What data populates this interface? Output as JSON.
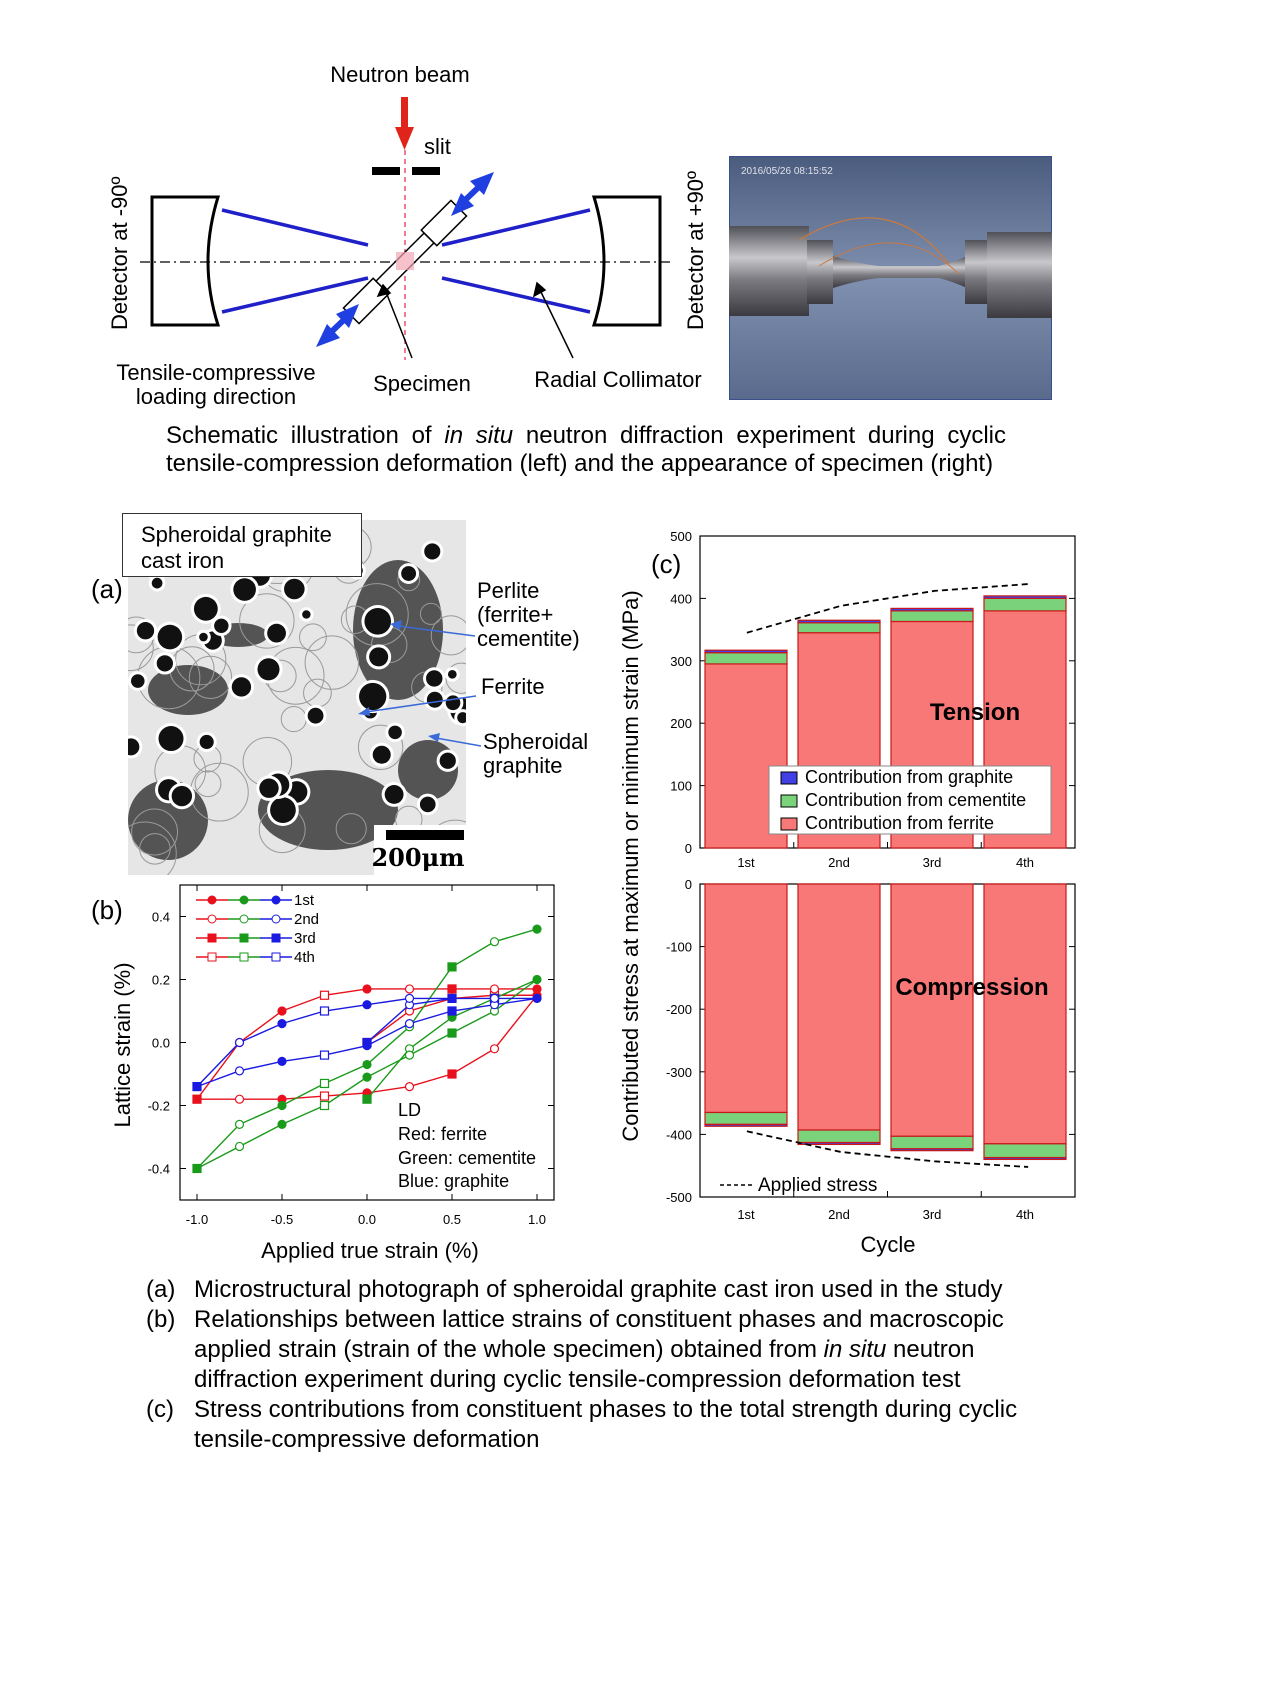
{
  "schematic": {
    "neutron_beam": "Neutron beam",
    "slit": "slit",
    "detector_left": "Detector at -90º",
    "detector_right": "Detector at +90º",
    "loading_direction_1": "Tensile-compressive",
    "loading_direction_2": "loading direction",
    "specimen": "Specimen",
    "collimator": "Radial Collimator",
    "photo_timestamp": "2016/05/26  08:15:52"
  },
  "caption_top": {
    "line1_a": "Schematic illustration of ",
    "line1_italic": "in situ",
    "line1_b": " neutron diffraction experiment during cyclic",
    "line2": "tensile-compression deformation (left) and the appearance of specimen (right)"
  },
  "panel_a": {
    "label": "(a)",
    "box_line1": "Spheroidal graphite",
    "box_line2": "cast iron",
    "perlite_1": "Perlite",
    "perlite_2": "(ferrite+",
    "perlite_3": "cementite)",
    "ferrite": "Ferrite",
    "graphite_1": "Spheroidal",
    "graphite_2": "graphite",
    "scale": "200μm"
  },
  "panel_b": {
    "label": "(b)",
    "legend": [
      "1st",
      "2nd",
      "3rd",
      "4th"
    ],
    "ld_title": "LD",
    "ld_red": "Red: ferrite",
    "ld_green": "Green: cementite",
    "ld_blue": "Blue: graphite"
  },
  "panel_c": {
    "label": "(c)"
  },
  "caption_bottom": {
    "a_label": "(a)",
    "a_text": "Microstructural photograph of spheroidal graphite cast iron used in the study",
    "b_label": "(b)",
    "b_line1": "Relationships between lattice strains of constituent phases and macroscopic",
    "b_line2_a": "applied strain (strain of the whole specimen) obtained from ",
    "b_line2_italic": "in situ",
    "b_line2_b": " neutron",
    "b_line3": "diffraction experiment during cyclic tensile-compression deformation test",
    "c_label": "(c)",
    "c_line1": "Stress contributions from constituent phases to the total strength during cyclic",
    "c_line2": "tensile-compressive deformation"
  },
  "chart_data": [
    {
      "type": "scatter",
      "xlabel": "Applied true strain (%)",
      "ylabel": "Lattice strain (%)",
      "xlim": [
        -1.1,
        1.1
      ],
      "ylim": [
        -0.5,
        0.5
      ],
      "xticks": [
        -1.0,
        -0.5,
        0.0,
        0.5,
        1.0
      ],
      "xtick_labels": [
        "-1.0",
        "-0.5",
        "0.0",
        "0.5",
        "1.0"
      ],
      "yticks": [
        -0.4,
        -0.2,
        0.0,
        0.2,
        0.4
      ],
      "ytick_labels": [
        "-0.4",
        "-0.2",
        "0.0",
        "0.2",
        "0.4"
      ],
      "colors": {
        "ferrite": "#e8101c",
        "cementite": "#1a9a1a",
        "graphite": "#1a1ae0"
      },
      "series": [
        {
          "name": "Red: ferrite",
          "color": "#e8101c",
          "x": [
            0.0,
            0.25,
            0.5,
            0.75,
            1.0,
            0.75,
            0.5,
            0.25,
            0.0,
            -0.25,
            -0.5,
            -0.75,
            -1.0,
            -0.75,
            -0.5,
            -0.25,
            0.0,
            0.25,
            0.5,
            0.75,
            1.0
          ],
          "y": [
            0.0,
            0.1,
            0.14,
            0.15,
            0.15,
            -0.02,
            -0.1,
            -0.14,
            -0.16,
            -0.17,
            -0.18,
            -0.18,
            -0.18,
            0.0,
            0.1,
            0.15,
            0.17,
            0.17,
            0.17,
            0.17,
            0.17
          ]
        },
        {
          "name": "Green: cementite",
          "color": "#1a9a1a",
          "x": [
            0.0,
            0.25,
            0.5,
            0.75,
            1.0,
            0.75,
            0.5,
            0.25,
            0.0,
            -0.25,
            -0.5,
            -0.75,
            -1.0,
            -0.75,
            -0.5,
            -0.25,
            0.0,
            0.25,
            0.5,
            0.75,
            1.0
          ],
          "y": [
            -0.18,
            -0.02,
            0.08,
            0.14,
            0.2,
            0.1,
            0.03,
            -0.04,
            -0.11,
            -0.2,
            -0.26,
            -0.33,
            -0.4,
            -0.26,
            -0.2,
            -0.13,
            -0.07,
            0.05,
            0.24,
            0.32,
            0.36
          ]
        },
        {
          "name": "Blue: graphite",
          "color": "#1a1ae0",
          "x": [
            0.0,
            0.25,
            0.5,
            0.75,
            1.0,
            0.75,
            0.5,
            0.25,
            0.0,
            -0.25,
            -0.5,
            -0.75,
            -1.0,
            -0.75,
            -0.5,
            -0.25,
            0.0,
            0.25,
            0.5,
            0.75,
            1.0
          ],
          "y": [
            0.0,
            0.12,
            0.14,
            0.14,
            0.14,
            0.12,
            0.1,
            0.06,
            -0.01,
            -0.04,
            -0.06,
            -0.09,
            -0.14,
            0.0,
            0.06,
            0.1,
            0.12,
            0.14,
            0.14,
            0.14,
            0.14
          ]
        }
      ]
    },
    {
      "type": "bar",
      "subtitle": "Tension",
      "ylabel": "Contributed stress at maximum or minimum strain (MPa)",
      "categories": [
        "1st",
        "2nd",
        "3rd",
        "4th"
      ],
      "ylim": [
        0,
        500
      ],
      "yticks": [
        0,
        100,
        200,
        300,
        400,
        500
      ],
      "series": [
        {
          "name": "Contribution from ferrite",
          "color": "#f87878",
          "values": [
            295,
            345,
            363,
            380
          ]
        },
        {
          "name": "Contribution from cementite",
          "color": "#7ad27a",
          "values": [
            18,
            16,
            17,
            20
          ]
        },
        {
          "name": "Contribution from graphite",
          "color": "#4040e6",
          "values": [
            4,
            4,
            4,
            4
          ]
        }
      ],
      "applied_stress": {
        "name": "Applied stress",
        "x": [
          0.5,
          1.5,
          2.5,
          3.5
        ],
        "values": [
          345,
          388,
          412,
          423
        ]
      }
    },
    {
      "type": "bar",
      "subtitle": "Compression",
      "xlabel": "Cycle",
      "categories": [
        "1st",
        "2nd",
        "3rd",
        "4th"
      ],
      "ylim": [
        -500,
        0
      ],
      "yticks": [
        0,
        -100,
        -200,
        -300,
        -400,
        -500
      ],
      "series": [
        {
          "name": "Contribution from ferrite",
          "color": "#f87878",
          "values": [
            -365,
            -393,
            -403,
            -415
          ]
        },
        {
          "name": "Contribution from cementite",
          "color": "#7ad27a",
          "values": [
            -19,
            -20,
            -20,
            -22
          ]
        },
        {
          "name": "Contribution from graphite",
          "color": "#4040e6",
          "values": [
            -3,
            -3,
            -3,
            -3
          ]
        }
      ],
      "applied_stress": {
        "name": "Applied stress",
        "x": [
          0.5,
          1.5,
          2.5,
          3.5
        ],
        "values": [
          -395,
          -428,
          -443,
          -452
        ]
      }
    }
  ]
}
